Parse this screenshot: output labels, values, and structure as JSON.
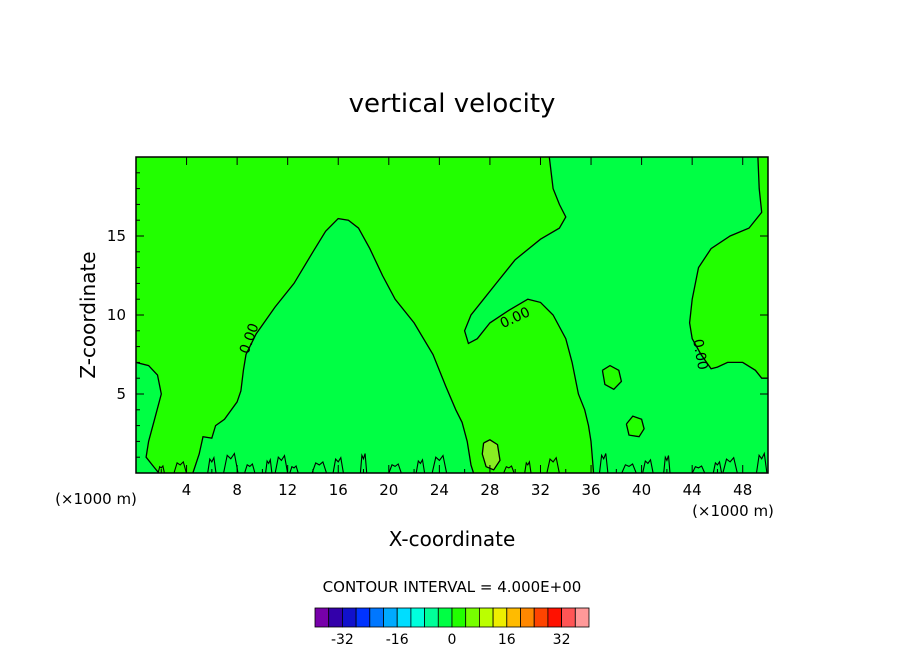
{
  "chart_data": {
    "type": "contour",
    "title": "vertical velocity",
    "xlabel": "X-coordinate",
    "ylabel": "Z-coordinate",
    "x_unit_left": "(×1000 m)",
    "x_unit_right": "(×1000 m)",
    "xlim": [
      0,
      50
    ],
    "ylim": [
      0,
      20
    ],
    "xticks": [
      4,
      8,
      12,
      16,
      20,
      24,
      28,
      32,
      36,
      40,
      44,
      48
    ],
    "xtick_labels": [
      "4",
      "8",
      "12",
      "16",
      "20",
      "24",
      "28",
      "32",
      "36",
      "40",
      "44",
      "48"
    ],
    "yticks": [
      5,
      10,
      15
    ],
    "ytick_labels": [
      "5",
      "10",
      "15"
    ],
    "contour_labels": [
      {
        "text": "0.00",
        "x": 9.0,
        "y": 8.5,
        "angle": -70
      },
      {
        "text": "0.00",
        "x": 30.0,
        "y": 9.8,
        "angle": -25
      },
      {
        "text": "0.00",
        "x": 44.6,
        "y": 7.5,
        "angle": 80
      }
    ],
    "regions": [
      {
        "level": "0 to 4",
        "color": "#22ff00"
      },
      {
        "level": "-4 to 0",
        "color": "#00ff44"
      },
      {
        "level": "4 to 8",
        "color": "#88ee22"
      }
    ],
    "zero_contours": [
      {
        "points": [
          [
            0,
            7
          ],
          [
            1,
            6.8
          ],
          [
            1.7,
            6.2
          ],
          [
            2,
            5
          ],
          [
            1.5,
            3.5
          ],
          [
            1,
            2
          ],
          [
            0.8,
            1
          ],
          [
            1.3,
            0.5
          ],
          [
            1.8,
            0
          ]
        ]
      },
      {
        "points": [
          [
            4.5,
            0
          ],
          [
            5,
            1.2
          ],
          [
            5.3,
            2.3
          ],
          [
            6,
            2.2
          ],
          [
            6.3,
            3
          ],
          [
            7,
            3.4
          ],
          [
            8,
            4.5
          ],
          [
            8.3,
            5.2
          ],
          [
            8.5,
            6.5
          ],
          [
            8.7,
            7.5
          ],
          [
            9.5,
            8.8
          ],
          [
            11,
            10.5
          ],
          [
            12.5,
            12
          ],
          [
            14,
            14
          ],
          [
            15,
            15.3
          ],
          [
            16,
            16.1
          ],
          [
            16.8,
            16
          ],
          [
            17.6,
            15.5
          ],
          [
            18.5,
            14.2
          ],
          [
            19.5,
            12.5
          ],
          [
            20.5,
            11
          ],
          [
            22,
            9.5
          ],
          [
            23.5,
            7.5
          ],
          [
            24.5,
            5.5
          ],
          [
            25.3,
            4
          ],
          [
            25.8,
            3.2
          ],
          [
            26.2,
            2
          ],
          [
            26.5,
            0.5
          ],
          [
            26.7,
            0
          ]
        ]
      },
      {
        "points": [
          [
            32.7,
            20
          ],
          [
            33,
            18
          ],
          [
            33.5,
            17
          ],
          [
            34,
            16.2
          ],
          [
            33.5,
            15.5
          ],
          [
            32,
            14.8
          ],
          [
            30,
            13.5
          ],
          [
            28.5,
            12
          ],
          [
            27.5,
            11
          ],
          [
            26.5,
            10
          ],
          [
            26,
            9
          ],
          [
            26.3,
            8.2
          ],
          [
            27,
            8.5
          ],
          [
            28,
            9.5
          ],
          [
            29.5,
            10.3
          ],
          [
            31,
            11
          ],
          [
            32,
            10.8
          ],
          [
            33,
            10
          ],
          [
            34,
            8.5
          ],
          [
            34.5,
            7
          ],
          [
            35,
            5
          ],
          [
            35.5,
            4
          ],
          [
            35.8,
            3
          ],
          [
            36,
            2
          ],
          [
            36.2,
            0
          ]
        ]
      },
      {
        "points": [
          [
            49.2,
            20
          ],
          [
            49.3,
            18
          ],
          [
            49.5,
            16.5
          ],
          [
            48.5,
            15.5
          ],
          [
            47,
            15
          ],
          [
            45.5,
            14.2
          ],
          [
            44.5,
            13
          ],
          [
            44,
            11
          ],
          [
            43.8,
            9.5
          ],
          [
            44,
            8.5
          ],
          [
            44.7,
            7.5
          ],
          [
            45.5,
            6.6
          ],
          [
            46,
            6.7
          ],
          [
            46.8,
            7
          ],
          [
            48,
            7
          ],
          [
            49,
            6.5
          ],
          [
            49.5,
            6
          ],
          [
            50,
            6
          ]
        ]
      },
      {
        "points": [
          [
            36.9,
            6.5
          ],
          [
            37.5,
            6.8
          ],
          [
            38.2,
            6.5
          ],
          [
            38.4,
            5.8
          ],
          [
            37.8,
            5.3
          ],
          [
            37.1,
            5.6
          ],
          [
            36.9,
            6.5
          ]
        ]
      },
      {
        "points": [
          [
            38.8,
            3.1
          ],
          [
            39.3,
            3.6
          ],
          [
            40,
            3.4
          ],
          [
            40.2,
            2.8
          ],
          [
            39.8,
            2.3
          ],
          [
            39,
            2.4
          ],
          [
            38.8,
            3.1
          ]
        ]
      },
      {
        "points": [
          [
            27.5,
            1.9
          ],
          [
            28,
            2.1
          ],
          [
            28.6,
            1.8
          ],
          [
            28.8,
            0.8
          ],
          [
            28.3,
            0.2
          ],
          [
            27.7,
            0.4
          ],
          [
            27.4,
            1.2
          ],
          [
            27.5,
            1.9
          ]
        ]
      }
    ],
    "colorbar": {
      "title": "CONTOUR INTERVAL = 4.000E+00",
      "colors": [
        "#7700aa",
        "#3300aa",
        "#1111cc",
        "#0033ff",
        "#0077ff",
        "#00aaff",
        "#00ddff",
        "#00ffdd",
        "#00ff99",
        "#00ff44",
        "#22ff00",
        "#77ff00",
        "#bbff00",
        "#eeee00",
        "#ffbb00",
        "#ff8800",
        "#ff4400",
        "#ff1100",
        "#ff5555",
        "#ff9999"
      ],
      "tick_labels": [
        "-32",
        "-16",
        "0",
        "16",
        "32"
      ],
      "tick_values": [
        -32,
        -16,
        0,
        16,
        32
      ],
      "range": [
        -40,
        40
      ]
    }
  }
}
